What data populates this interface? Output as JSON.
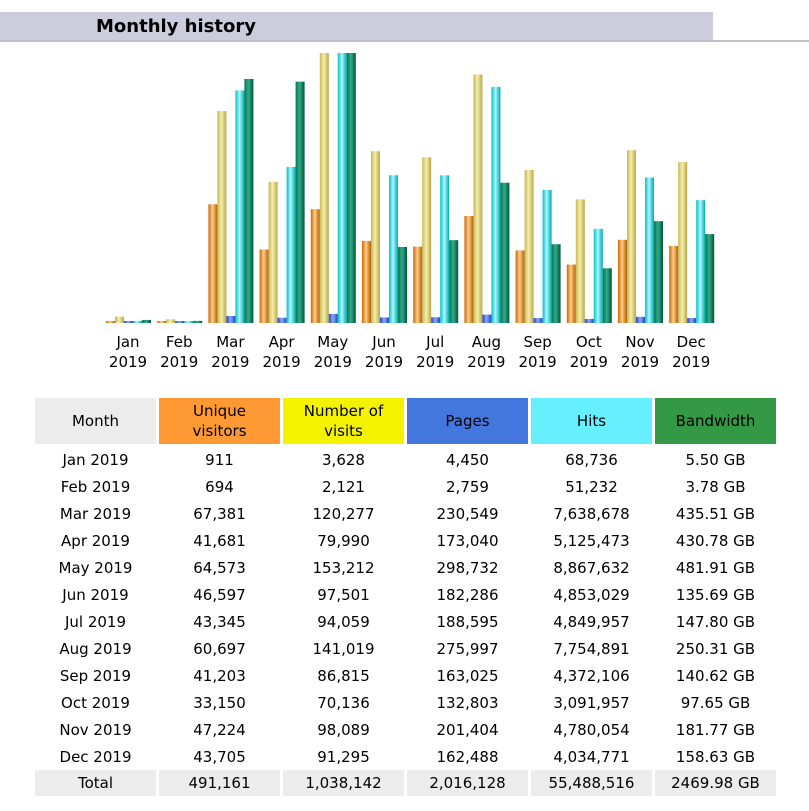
{
  "title": "Monthly history",
  "colors": {
    "visitors": "#ff9933",
    "visits": "#f3f300",
    "pages": "#4477dd",
    "hits": "#66f0ff",
    "bandwidth": "#339944",
    "month_header": "#ececec"
  },
  "chart_data": {
    "type": "bar",
    "categories": [
      "Jan 2019",
      "Feb 2019",
      "Mar 2019",
      "Apr 2019",
      "May 2019",
      "Jun 2019",
      "Jul 2019",
      "Aug 2019",
      "Sep 2019",
      "Oct 2019",
      "Nov 2019",
      "Dec 2019"
    ],
    "month_labels": [
      "Jan",
      "Feb",
      "Mar",
      "Apr",
      "May",
      "Jun",
      "Jul",
      "Aug",
      "Sep",
      "Oct",
      "Nov",
      "Dec"
    ],
    "year_label": "2019",
    "series": [
      {
        "name": "Unique visitors",
        "values": [
          911,
          694,
          67381,
          41681,
          64573,
          46597,
          43345,
          60697,
          41203,
          33150,
          47224,
          43705
        ]
      },
      {
        "name": "Number of visits",
        "values": [
          3628,
          2121,
          120277,
          79990,
          153212,
          97501,
          94059,
          141019,
          86815,
          70136,
          98089,
          91295
        ]
      },
      {
        "name": "Pages",
        "values": [
          4450,
          2759,
          230549,
          173040,
          298732,
          182286,
          188595,
          275997,
          163025,
          132803,
          201404,
          162488
        ]
      },
      {
        "name": "Hits",
        "values": [
          68736,
          51232,
          7638678,
          5125473,
          8867632,
          4853029,
          4849957,
          7754891,
          4372106,
          3091957,
          4780054,
          4034771
        ]
      },
      {
        "name": "Bandwidth",
        "values": [
          5.5,
          3.78,
          435.51,
          430.78,
          481.91,
          135.69,
          147.8,
          250.31,
          140.62,
          97.65,
          181.77,
          158.63
        ]
      }
    ]
  },
  "table": {
    "headers": [
      "Month",
      "Unique\nvisitors",
      "Number of\nvisits",
      "Pages",
      "Hits",
      "Bandwidth"
    ],
    "rows": [
      [
        "Jan 2019",
        "911",
        "3,628",
        "4,450",
        "68,736",
        "5.50 GB"
      ],
      [
        "Feb 2019",
        "694",
        "2,121",
        "2,759",
        "51,232",
        "3.78 GB"
      ],
      [
        "Mar 2019",
        "67,381",
        "120,277",
        "230,549",
        "7,638,678",
        "435.51 GB"
      ],
      [
        "Apr 2019",
        "41,681",
        "79,990",
        "173,040",
        "5,125,473",
        "430.78 GB"
      ],
      [
        "May 2019",
        "64,573",
        "153,212",
        "298,732",
        "8,867,632",
        "481.91 GB"
      ],
      [
        "Jun 2019",
        "46,597",
        "97,501",
        "182,286",
        "4,853,029",
        "135.69 GB"
      ],
      [
        "Jul 2019",
        "43,345",
        "94,059",
        "188,595",
        "4,849,957",
        "147.80 GB"
      ],
      [
        "Aug 2019",
        "60,697",
        "141,019",
        "275,997",
        "7,754,891",
        "250.31 GB"
      ],
      [
        "Sep 2019",
        "41,203",
        "86,815",
        "163,025",
        "4,372,106",
        "140.62 GB"
      ],
      [
        "Oct 2019",
        "33,150",
        "70,136",
        "132,803",
        "3,091,957",
        "97.65 GB"
      ],
      [
        "Nov 2019",
        "47,224",
        "98,089",
        "201,404",
        "4,780,054",
        "181.77 GB"
      ],
      [
        "Dec 2019",
        "43,705",
        "91,295",
        "162,488",
        "4,034,771",
        "158.63 GB"
      ]
    ],
    "total": [
      "Total",
      "491,161",
      "1,038,142",
      "2,016,128",
      "55,488,516",
      "2469.98 GB"
    ]
  }
}
